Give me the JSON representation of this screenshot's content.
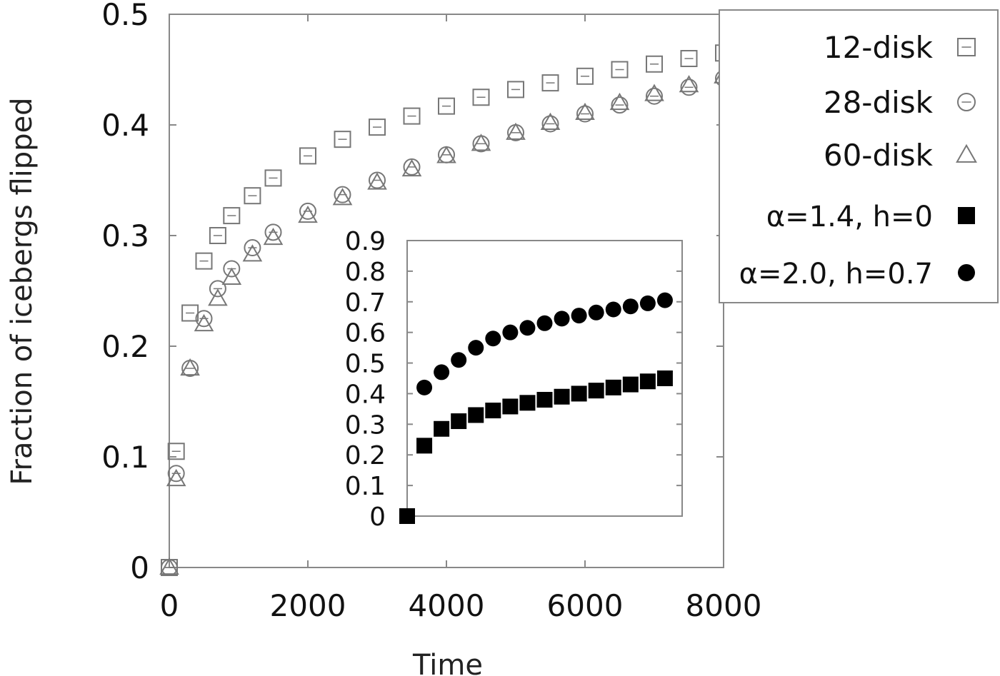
{
  "chart_data": [
    {
      "type": "scatter",
      "xlabel": "Time",
      "ylabel": "Fraction of icebergs flipped",
      "xlim": [
        0,
        8000
      ],
      "ylim": [
        0,
        0.5
      ],
      "xticks": [
        0,
        2000,
        4000,
        6000,
        8000
      ],
      "yticks": [
        0,
        0.1,
        0.2,
        0.3,
        0.4,
        0.5
      ],
      "grid": false,
      "legend_position": "top-right",
      "series": [
        {
          "name": "12-disk",
          "marker": "square-open",
          "x": [
            0,
            100,
            300,
            500,
            700,
            900,
            1200,
            1500,
            2000,
            2500,
            3000,
            3500,
            4000,
            4500,
            5000,
            5500,
            6000,
            6500,
            7000,
            7500,
            8000
          ],
          "y": [
            0,
            0.105,
            0.23,
            0.277,
            0.3,
            0.318,
            0.336,
            0.352,
            0.372,
            0.387,
            0.398,
            0.408,
            0.417,
            0.425,
            0.432,
            0.438,
            0.444,
            0.45,
            0.455,
            0.46,
            0.465
          ]
        },
        {
          "name": "28-disk",
          "marker": "circle-open",
          "x": [
            0,
            100,
            300,
            500,
            700,
            900,
            1200,
            1500,
            2000,
            2500,
            3000,
            3500,
            4000,
            4500,
            5000,
            5500,
            6000,
            6500,
            7000,
            7500,
            8000
          ],
          "y": [
            0,
            0.085,
            0.18,
            0.225,
            0.252,
            0.27,
            0.289,
            0.303,
            0.322,
            0.337,
            0.35,
            0.362,
            0.373,
            0.383,
            0.393,
            0.401,
            0.41,
            0.418,
            0.426,
            0.434,
            0.442
          ]
        },
        {
          "name": "60-disk",
          "marker": "triangle-open",
          "x": [
            0,
            100,
            300,
            500,
            700,
            900,
            1200,
            1500,
            2000,
            2500,
            3000,
            3500,
            4000,
            4500,
            5000,
            5500,
            6000,
            6500,
            7000,
            7500,
            8000
          ],
          "y": [
            0,
            0.08,
            0.18,
            0.22,
            0.243,
            0.262,
            0.283,
            0.298,
            0.318,
            0.334,
            0.348,
            0.36,
            0.372,
            0.383,
            0.393,
            0.402,
            0.411,
            0.42,
            0.428,
            0.436,
            0.444
          ]
        },
        {
          "name": "α=1.4, h=0",
          "marker": "square-filled",
          "x": [],
          "y": []
        },
        {
          "name": "α=2.0, h=0.7",
          "marker": "circle-filled",
          "x": [],
          "y": []
        }
      ]
    },
    {
      "type": "scatter",
      "inset": true,
      "xlabel": "",
      "ylabel": "",
      "ylim": [
        0,
        0.9
      ],
      "yticks": [
        0,
        0.1,
        0.2,
        0.3,
        0.4,
        0.5,
        0.6,
        0.7,
        0.8,
        0.9
      ],
      "xlim": [
        0,
        8000
      ],
      "grid": false,
      "series": [
        {
          "name": "α=1.4, h=0",
          "marker": "square-filled",
          "x": [
            0,
            500,
            1000,
            1500,
            2000,
            2500,
            3000,
            3500,
            4000,
            4500,
            5000,
            5500,
            6000,
            6500,
            7000,
            7500
          ],
          "y": [
            0,
            0.23,
            0.285,
            0.31,
            0.33,
            0.345,
            0.358,
            0.37,
            0.38,
            0.39,
            0.4,
            0.41,
            0.42,
            0.43,
            0.44,
            0.45
          ]
        },
        {
          "name": "α=2.0, h=0.7",
          "marker": "circle-filled",
          "x": [
            500,
            1000,
            1500,
            2000,
            2500,
            3000,
            3500,
            4000,
            4500,
            5000,
            5500,
            6000,
            6500,
            7000,
            7500
          ],
          "y": [
            0.42,
            0.47,
            0.51,
            0.55,
            0.58,
            0.6,
            0.615,
            0.63,
            0.645,
            0.655,
            0.665,
            0.675,
            0.685,
            0.695,
            0.705
          ]
        }
      ]
    }
  ]
}
